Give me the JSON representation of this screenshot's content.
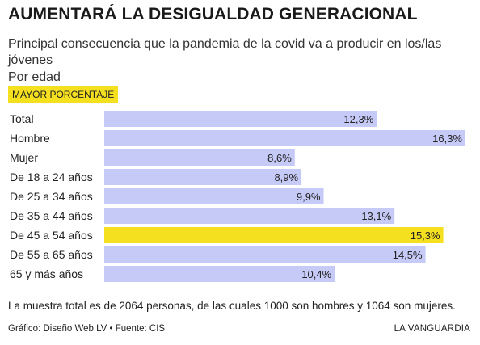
{
  "colors": {
    "bar": "#c6caf7",
    "highlight": "#f5e020",
    "row_band": "#ffffff",
    "separator": "#e8e8e8"
  },
  "header": {
    "title": "AUMENTARÁ LA DESIGUALDAD GENERACIONAL",
    "subtitle": "Principal consecuencia que la pandemia de la covid va a producir en los/las jóvenes",
    "subtitle2": "Por edad",
    "badge": "MAYOR PORCENTAJE"
  },
  "chart_data": {
    "type": "bar",
    "orientation": "horizontal",
    "categories": [
      "Total",
      "Hombre",
      "Mujer",
      "De 18 a 24 años",
      "De 25 a 34 años",
      "De 35 a 44 años",
      "De 45 a 54 años",
      "De 55 a 65 años",
      "65 y más años"
    ],
    "values": [
      12.3,
      16.3,
      8.6,
      8.9,
      9.9,
      13.1,
      15.3,
      14.5,
      10.4
    ],
    "labels": [
      "12,3%",
      "16,3%",
      "8,6%",
      "8,9%",
      "9,9%",
      "13,1%",
      "15,3%",
      "14,5%",
      "10,4%"
    ],
    "highlight_index": 6,
    "xlim": [
      0,
      16.3
    ]
  },
  "footer": {
    "note": "La muestra total es de 2064 personas, de las cuales 1000 son hombres y 1064 son mujeres.",
    "credit": "Gráfico: Diseño Web LV • Fuente: CIS",
    "brand": "LA VANGUARDIA"
  }
}
